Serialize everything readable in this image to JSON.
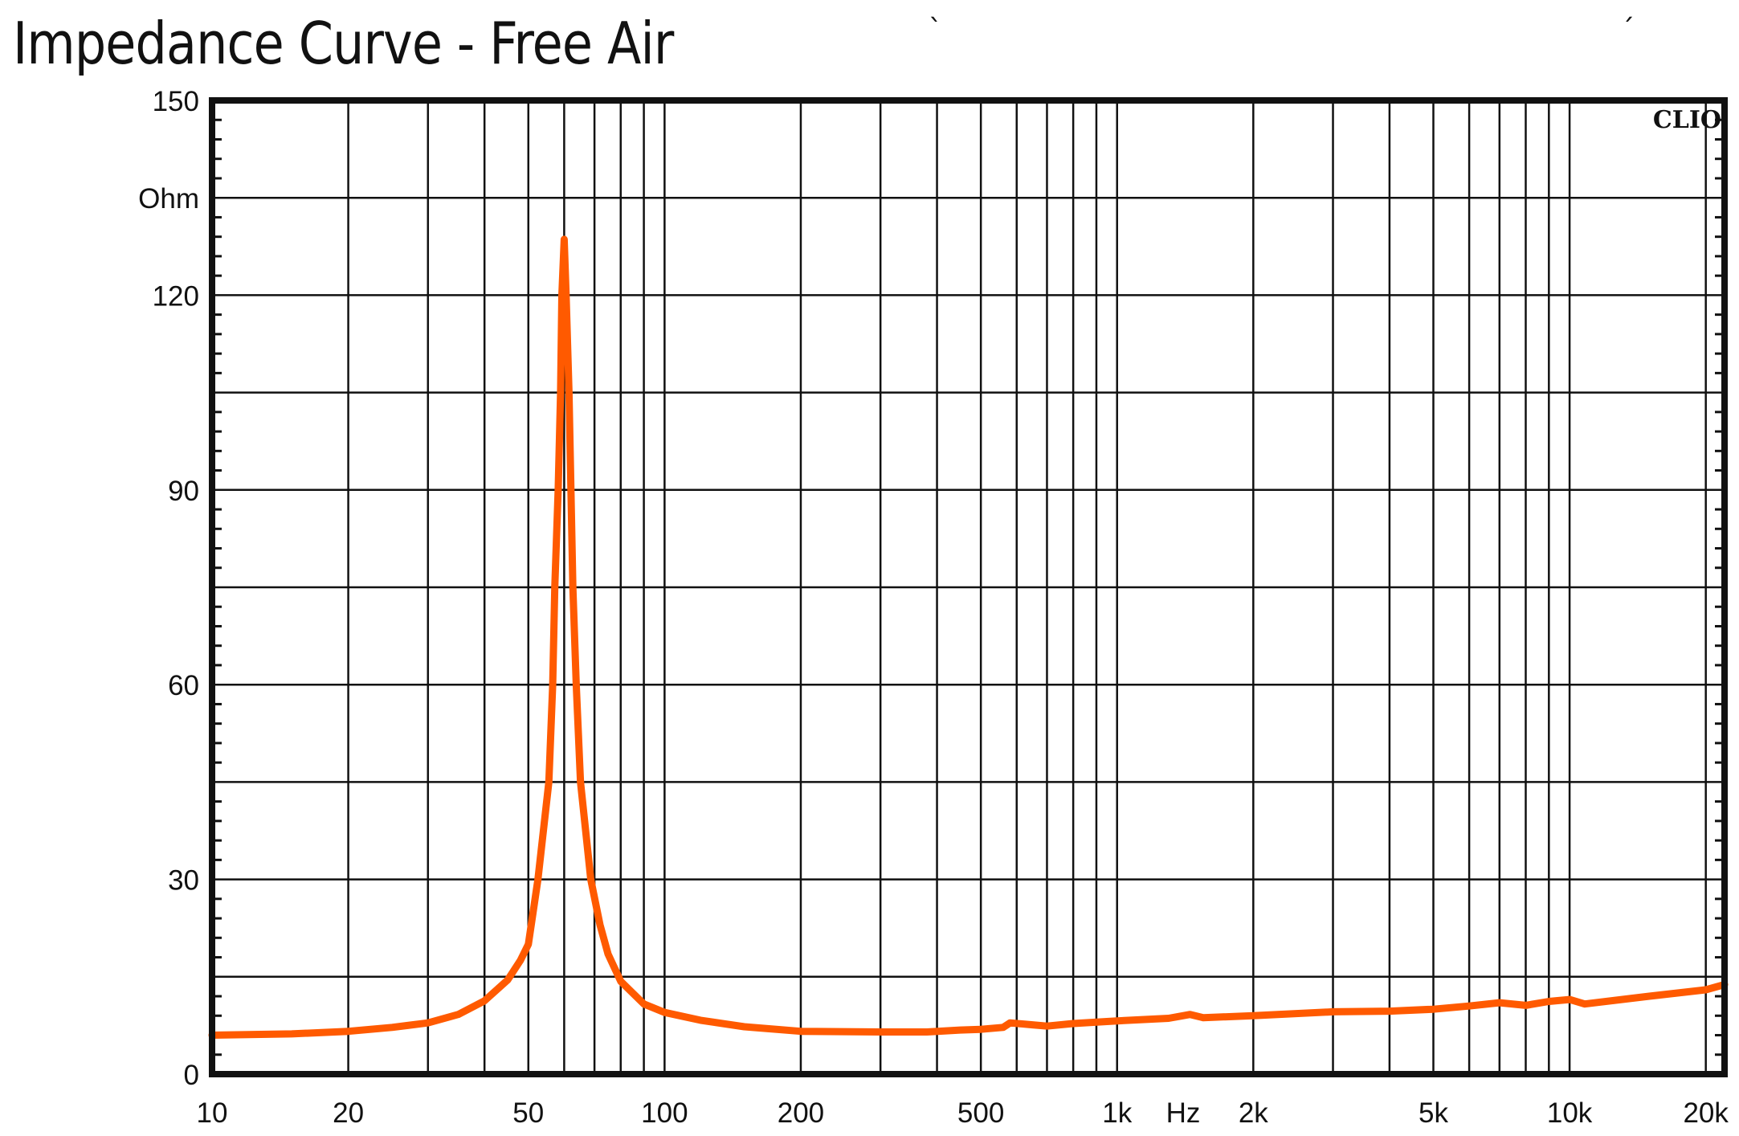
{
  "chart_data": {
    "type": "line",
    "title": "Impedance Curve - Free Air",
    "xlabel": "Hz",
    "ylabel": "Ohm",
    "x_scale": "log",
    "xlim": [
      10,
      22000
    ],
    "ylim": [
      0,
      150
    ],
    "grid": true,
    "x_gridlines": [
      20,
      30,
      40,
      50,
      60,
      70,
      80,
      90,
      100,
      200,
      300,
      400,
      500,
      600,
      700,
      800,
      900,
      1000,
      2000,
      3000,
      4000,
      5000,
      6000,
      7000,
      8000,
      9000,
      10000,
      20000
    ],
    "x_ticks": [
      {
        "value": 10,
        "label": "10"
      },
      {
        "value": 20,
        "label": "20"
      },
      {
        "value": 50,
        "label": "50"
      },
      {
        "value": 100,
        "label": "100"
      },
      {
        "value": 200,
        "label": "200"
      },
      {
        "value": 500,
        "label": "500"
      },
      {
        "value": 1000,
        "label": "1k"
      },
      {
        "value": 2000,
        "label": "2k"
      },
      {
        "value": 5000,
        "label": "5k"
      },
      {
        "value": 10000,
        "label": "10k"
      },
      {
        "value": 20000,
        "label": "20k"
      }
    ],
    "x_unit_label_position": 1400,
    "y_gridlines": [
      15,
      30,
      45,
      60,
      75,
      90,
      105,
      120,
      135
    ],
    "y_minor_step": 3,
    "y_ticks": [
      {
        "value": 0,
        "label": "0"
      },
      {
        "value": 30,
        "label": "30"
      },
      {
        "value": 60,
        "label": "60"
      },
      {
        "value": 90,
        "label": "90"
      },
      {
        "value": 120,
        "label": "120"
      },
      {
        "value": 150,
        "label": "150"
      }
    ],
    "y_unit_label_position": 135,
    "series": [
      {
        "color": "#ff5a00",
        "points": [
          [
            10,
            6
          ],
          [
            15,
            6.2
          ],
          [
            20,
            6.6
          ],
          [
            25,
            7.2
          ],
          [
            30,
            7.9
          ],
          [
            35,
            9.2
          ],
          [
            40,
            11.3
          ],
          [
            45,
            14.5
          ],
          [
            48,
            17.5
          ],
          [
            50,
            20
          ],
          [
            52.5,
            30
          ],
          [
            55.5,
            45
          ],
          [
            56.6,
            60
          ],
          [
            57.2,
            75
          ],
          [
            58.2,
            90
          ],
          [
            58.9,
            105
          ],
          [
            59.3,
            120
          ],
          [
            60,
            128.6
          ],
          [
            60.6,
            120
          ],
          [
            61.5,
            105
          ],
          [
            62.1,
            90
          ],
          [
            62.7,
            75
          ],
          [
            63.8,
            60
          ],
          [
            65.2,
            45
          ],
          [
            68.7,
            30
          ],
          [
            72,
            23
          ],
          [
            75,
            18.5
          ],
          [
            80,
            14.3
          ],
          [
            90,
            10.8
          ],
          [
            100,
            9.5
          ],
          [
            120,
            8.3
          ],
          [
            150,
            7.3
          ],
          [
            200,
            6.6
          ],
          [
            300,
            6.5
          ],
          [
            380,
            6.5
          ],
          [
            450,
            6.8
          ],
          [
            500,
            6.9
          ],
          [
            560,
            7.2
          ],
          [
            580,
            7.9
          ],
          [
            650,
            7.6
          ],
          [
            700,
            7.4
          ],
          [
            800,
            7.8
          ],
          [
            1000,
            8.2
          ],
          [
            1300,
            8.6
          ],
          [
            1450,
            9.2
          ],
          [
            1550,
            8.7
          ],
          [
            2000,
            9
          ],
          [
            3000,
            9.6
          ],
          [
            4000,
            9.7
          ],
          [
            5000,
            10
          ],
          [
            6000,
            10.5
          ],
          [
            7000,
            11
          ],
          [
            8000,
            10.6
          ],
          [
            9000,
            11.2
          ],
          [
            10000,
            11.5
          ],
          [
            10800,
            10.8
          ],
          [
            15000,
            12
          ],
          [
            20000,
            13
          ],
          [
            22000,
            13.8
          ]
        ]
      }
    ],
    "logo": "CLIO",
    "stray_marks": [
      "`",
      "´"
    ]
  }
}
